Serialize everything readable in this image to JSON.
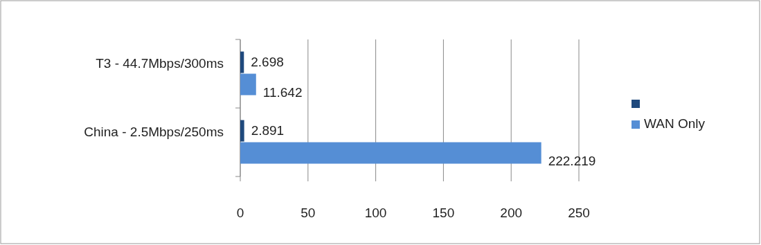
{
  "chart_data": {
    "type": "bar",
    "orientation": "horizontal",
    "categories": [
      "T3 - 44.7Mbps/300ms",
      "China - 2.5Mbps/250ms"
    ],
    "series": [
      {
        "color": "#1f497d",
        "values": [
          2.698,
          2.891
        ]
      },
      {
        "name": "WAN Only",
        "color": "#558ed5",
        "values": [
          11.642,
          222.219
        ]
      }
    ],
    "xlim": [
      0,
      250
    ],
    "xticks": [
      0,
      50,
      100,
      150,
      200,
      250
    ],
    "grid": "x",
    "legend": "right",
    "data_labels": true
  }
}
